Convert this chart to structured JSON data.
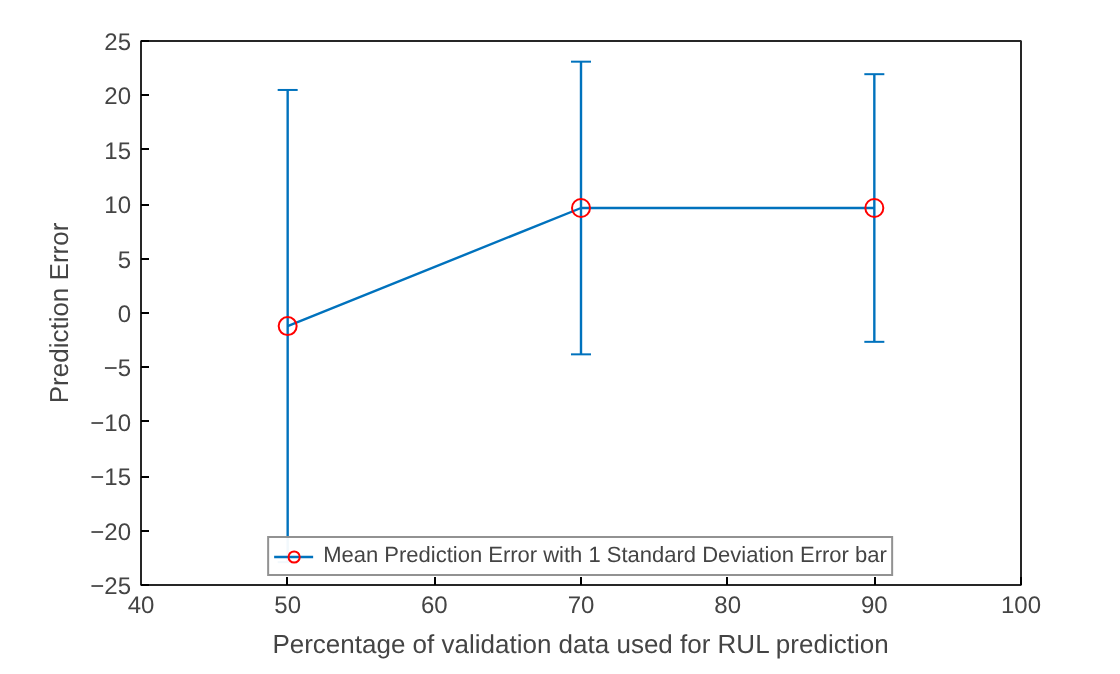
{
  "chart_data": {
    "type": "line",
    "xlabel": "Percentage of validation data used for RUL prediction",
    "ylabel": "Prediction Error",
    "x": [
      50,
      70,
      90
    ],
    "series": [
      {
        "name": "Mean Prediction Error with 1 Standard Deviation Error bar",
        "color": "#0072bd",
        "values": [
          -1.2,
          9.65,
          9.65
        ],
        "errors": [
          21.7,
          13.45,
          12.3
        ]
      }
    ],
    "marker": "circle",
    "xlim": [
      40,
      100
    ],
    "xticks": [
      40,
      50,
      60,
      70,
      80,
      90,
      100
    ],
    "ylim": [
      -25,
      25
    ],
    "yticks": [
      -25,
      -20,
      -15,
      -10,
      -5,
      0,
      5,
      10,
      15,
      20,
      25
    ],
    "grid": false,
    "legend": "bottom"
  }
}
